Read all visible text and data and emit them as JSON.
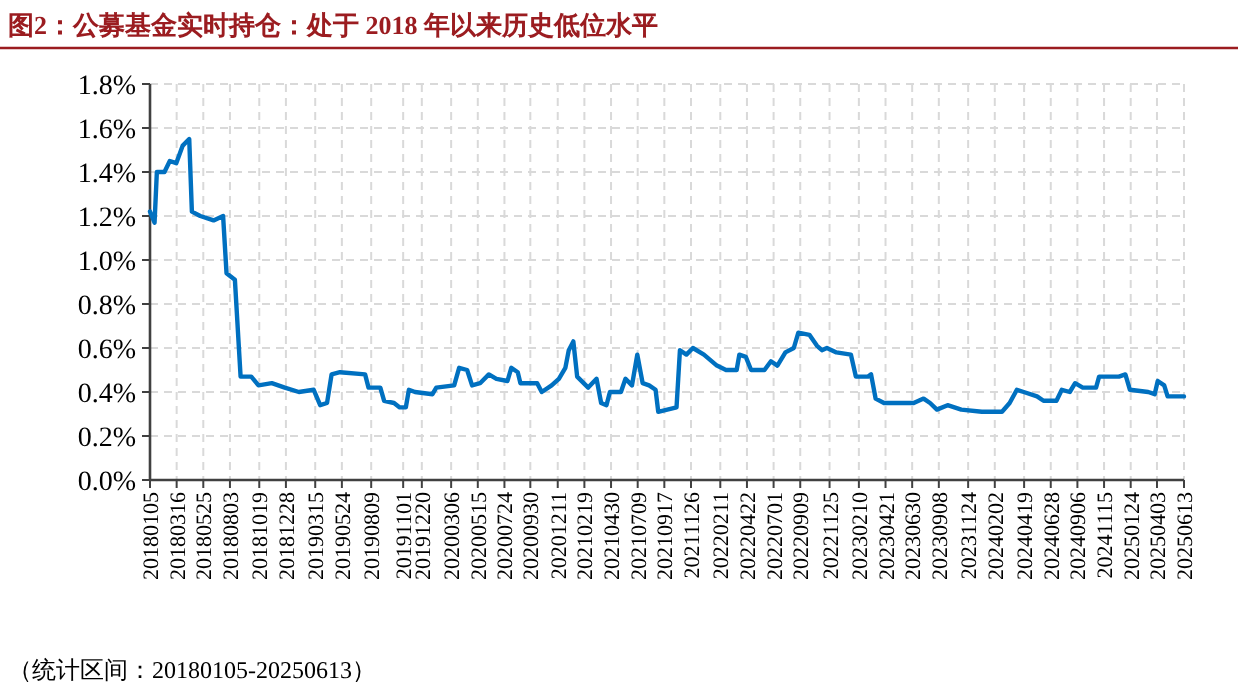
{
  "chart_data": {
    "type": "line",
    "title": "图2：公募基金实时持仓：处于 2018 年以来历史低位水平",
    "annotations": [
      "（统计区间：20180105-20250613）"
    ],
    "x": [
      "2018-01-05",
      "2018-01-17",
      "2018-01-23",
      "2018-02-12",
      "2018-02-26",
      "2018-03-15",
      "2018-04-01",
      "2018-04-18",
      "2018-04-25",
      "2018-05-17",
      "2018-06-21",
      "2018-07-16",
      "2018-07-25",
      "2018-08-16",
      "2018-08-31",
      "2018-09-28",
      "2018-10-17",
      "2018-11-21",
      "2018-12-25",
      "2019-01-31",
      "2019-03-11",
      "2019-03-28",
      "2019-04-15",
      "2019-04-27",
      "2019-05-19",
      "2019-07-24",
      "2019-08-02",
      "2019-09-02",
      "2019-09-12",
      "2019-10-08",
      "2019-10-23",
      "2019-11-08",
      "2019-11-16",
      "2019-12-02",
      "2020-01-17",
      "2020-01-27",
      "2020-03-14",
      "2020-03-27",
      "2020-04-17",
      "2020-04-30",
      "2020-05-21",
      "2020-06-13",
      "2020-07-03",
      "2020-08-01",
      "2020-08-11",
      "2020-08-28",
      "2020-09-04",
      "2020-10-18",
      "2020-10-30",
      "2020-11-25",
      "2020-12-14",
      "2020-12-31",
      "2021-01-09",
      "2021-01-21",
      "2021-01-31",
      "2021-03-01",
      "2021-03-23",
      "2021-04-04",
      "2021-04-18",
      "2021-04-27",
      "2021-05-26",
      "2021-06-07",
      "2021-06-24",
      "2021-07-08",
      "2021-07-22",
      "2021-08-08",
      "2021-08-25",
      "2021-09-01",
      "2021-10-19",
      "2021-10-28",
      "2021-11-14",
      "2021-12-01",
      "2021-12-30",
      "2022-02-02",
      "2022-02-26",
      "2022-03-26",
      "2022-04-02",
      "2022-04-19",
      "2022-05-03",
      "2022-06-07",
      "2022-06-24",
      "2022-07-11",
      "2022-08-01",
      "2022-08-23",
      "2022-09-04",
      "2022-10-03",
      "2022-10-23",
      "2022-11-05",
      "2022-11-18",
      "2022-12-13",
      "2023-01-20",
      "2023-02-02",
      "2023-03-06",
      "2023-03-14",
      "2023-03-26",
      "2023-04-17",
      "2023-05-13",
      "2023-07-04",
      "2023-07-30",
      "2023-08-16",
      "2023-09-03",
      "2023-10-01",
      "2023-11-06",
      "2023-12-30",
      "2024-02-21",
      "2024-03-12",
      "2024-03-31",
      "2024-04-18",
      "2024-05-23",
      "2024-06-09",
      "2024-07-13",
      "2024-07-27",
      "2024-08-17",
      "2024-08-31",
      "2024-09-20",
      "2024-10-25",
      "2024-11-02",
      "2024-11-28",
      "2024-12-24",
      "2025-01-10",
      "2025-01-22",
      "2025-03-11",
      "2025-03-28",
      "2025-04-05",
      "2025-04-22",
      "2025-05-01",
      "2025-06-13"
    ],
    "series": [
      {
        "color": "#0070c0",
        "values": [
          1.22,
          1.17,
          1.4,
          1.4,
          1.45,
          1.44,
          1.52,
          1.55,
          1.22,
          1.2,
          1.18,
          1.2,
          0.94,
          0.91,
          0.47,
          0.47,
          0.43,
          0.44,
          0.42,
          0.4,
          0.41,
          0.34,
          0.35,
          0.48,
          0.49,
          0.48,
          0.42,
          0.42,
          0.36,
          0.35,
          0.33,
          0.33,
          0.41,
          0.4,
          0.39,
          0.42,
          0.43,
          0.51,
          0.5,
          0.43,
          0.44,
          0.48,
          0.46,
          0.45,
          0.51,
          0.49,
          0.44,
          0.44,
          0.4,
          0.43,
          0.46,
          0.51,
          0.59,
          0.63,
          0.47,
          0.42,
          0.46,
          0.35,
          0.34,
          0.4,
          0.4,
          0.46,
          0.43,
          0.57,
          0.44,
          0.43,
          0.41,
          0.31,
          0.33,
          0.59,
          0.57,
          0.6,
          0.57,
          0.52,
          0.5,
          0.5,
          0.57,
          0.56,
          0.5,
          0.5,
          0.54,
          0.52,
          0.58,
          0.6,
          0.67,
          0.66,
          0.61,
          0.59,
          0.6,
          0.58,
          0.57,
          0.47,
          0.47,
          0.48,
          0.37,
          0.35,
          0.35,
          0.35,
          0.37,
          0.35,
          0.32,
          0.34,
          0.32,
          0.31,
          0.31,
          0.35,
          0.41,
          0.4,
          0.38,
          0.36,
          0.36,
          0.41,
          0.4,
          0.44,
          0.42,
          0.42,
          0.47,
          0.47,
          0.47,
          0.48,
          0.41,
          0.4,
          0.39,
          0.45,
          0.43,
          0.38,
          0.38
        ]
      }
    ],
    "xlim": [
      "2018-01-05",
      "2025-06-13"
    ],
    "xticks": [
      {
        "value": "2018-01-05",
        "label": "20180105"
      },
      {
        "value": "2018-03-16",
        "label": "20180316"
      },
      {
        "value": "2018-05-25",
        "label": "20180525"
      },
      {
        "value": "2018-08-03",
        "label": "20180803"
      },
      {
        "value": "2018-10-19",
        "label": "20181019"
      },
      {
        "value": "2018-12-28",
        "label": "20181228"
      },
      {
        "value": "2019-03-15",
        "label": "20190315"
      },
      {
        "value": "2019-05-24",
        "label": "20190524"
      },
      {
        "value": "2019-08-09",
        "label": "20190809"
      },
      {
        "value": "2019-11-01",
        "label": "20191101"
      },
      {
        "value": "2019-12-20",
        "label": "20191220"
      },
      {
        "value": "2020-03-06",
        "label": "20200306"
      },
      {
        "value": "2020-05-15",
        "label": "20200515"
      },
      {
        "value": "2020-07-24",
        "label": "20200724"
      },
      {
        "value": "2020-09-30",
        "label": "20200930"
      },
      {
        "value": "2020-12-11",
        "label": "20201211"
      },
      {
        "value": "2021-02-19",
        "label": "20210219"
      },
      {
        "value": "2021-04-30",
        "label": "20210430"
      },
      {
        "value": "2021-07-09",
        "label": "20210709"
      },
      {
        "value": "2021-09-17",
        "label": "20210917"
      },
      {
        "value": "2021-11-26",
        "label": "20211126"
      },
      {
        "value": "2022-02-11",
        "label": "20220211"
      },
      {
        "value": "2022-04-22",
        "label": "20220422"
      },
      {
        "value": "2022-07-01",
        "label": "20220701"
      },
      {
        "value": "2022-09-09",
        "label": "20220909"
      },
      {
        "value": "2022-11-25",
        "label": "20221125"
      },
      {
        "value": "2023-02-10",
        "label": "20230210"
      },
      {
        "value": "2023-04-21",
        "label": "20230421"
      },
      {
        "value": "2023-06-30",
        "label": "20230630"
      },
      {
        "value": "2023-09-08",
        "label": "20230908"
      },
      {
        "value": "2023-11-24",
        "label": "20231124"
      },
      {
        "value": "2024-02-02",
        "label": "20240202"
      },
      {
        "value": "2024-04-19",
        "label": "20240419"
      },
      {
        "value": "2024-06-28",
        "label": "20240628"
      },
      {
        "value": "2024-09-06",
        "label": "20240906"
      },
      {
        "value": "2024-11-15",
        "label": "20241115"
      },
      {
        "value": "2025-01-24",
        "label": "20250124"
      },
      {
        "value": "2025-04-03",
        "label": "20250403"
      },
      {
        "value": "2025-06-13",
        "label": "20250613"
      }
    ],
    "ylim": [
      0,
      1.8
    ],
    "yticks": [
      {
        "value": 0,
        "label": "0.0%"
      },
      {
        "value": 0.2,
        "label": "0.2%"
      },
      {
        "value": 0.4,
        "label": "0.4%"
      },
      {
        "value": 0.6,
        "label": "0.6%"
      },
      {
        "value": 0.8,
        "label": "0.8%"
      },
      {
        "value": 1.0,
        "label": "1.0%"
      },
      {
        "value": 1.2,
        "label": "1.2%"
      },
      {
        "value": 1.4,
        "label": "1.4%"
      },
      {
        "value": 1.6,
        "label": "1.6%"
      },
      {
        "value": 1.8,
        "label": "1.8%"
      }
    ],
    "grid": true
  }
}
